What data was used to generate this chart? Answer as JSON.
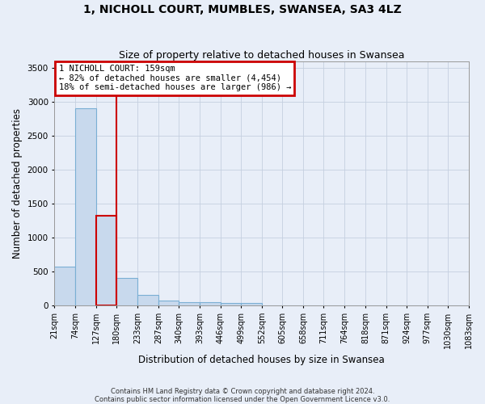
{
  "title": "1, NICHOLL COURT, MUMBLES, SWANSEA, SA3 4LZ",
  "subtitle": "Size of property relative to detached houses in Swansea",
  "xlabel": "Distribution of detached houses by size in Swansea",
  "ylabel": "Number of detached properties",
  "footer_line1": "Contains HM Land Registry data © Crown copyright and database right 2024.",
  "footer_line2": "Contains public sector information licensed under the Open Government Licence v3.0.",
  "annotation_line1": "1 NICHOLL COURT: 159sqm",
  "annotation_line2": "← 82% of detached houses are smaller (4,454)",
  "annotation_line3": "18% of semi-detached houses are larger (986) →",
  "bar_edges": [
    21,
    74,
    127,
    180,
    233,
    287,
    340,
    393,
    446,
    499,
    552,
    605,
    658,
    711,
    764,
    818,
    871,
    924,
    977,
    1030,
    1083
  ],
  "bar_heights": [
    570,
    2910,
    1320,
    405,
    155,
    80,
    55,
    48,
    40,
    35,
    0,
    0,
    0,
    0,
    0,
    0,
    0,
    0,
    0,
    0
  ],
  "highlight_bar_index": 2,
  "bar_color": "#c8d9ed",
  "bar_edge_color": "#7aafd4",
  "highlight_bar_edge_color": "#cc0000",
  "grid_color": "#c5cfe0",
  "background_color": "#e8eef8",
  "plot_bg_color": "#e8eef8",
  "ylim": [
    0,
    3600
  ],
  "yticks": [
    0,
    500,
    1000,
    1500,
    2000,
    2500,
    3000,
    3500
  ],
  "title_fontsize": 10,
  "subtitle_fontsize": 9,
  "annotation_box_color": "#cc0000",
  "red_line_x": 180
}
